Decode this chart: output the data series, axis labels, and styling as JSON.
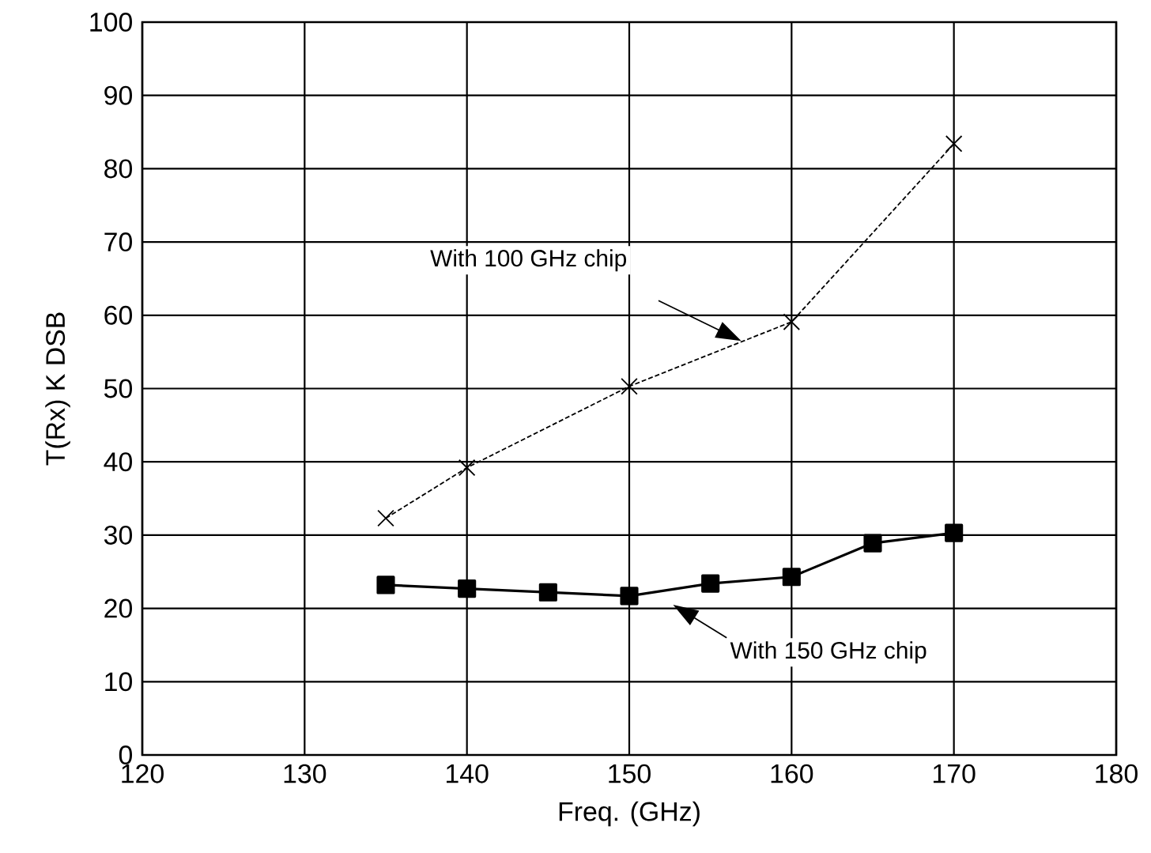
{
  "chart_data": {
    "type": "line",
    "xlabel": "Freq. (GHz)",
    "ylabel": "T(Rx)  K   DSB",
    "series": [
      {
        "x": [
          135,
          140,
          150,
          160,
          170
        ],
        "values": [
          32.3,
          39.2,
          50.3,
          59.1,
          83.4
        ],
        "color": "#000000",
        "marker": "cross",
        "line_style": "dashed"
      },
      {
        "x": [
          135,
          140,
          145,
          150,
          155,
          160,
          165,
          170
        ],
        "values": [
          23.2,
          22.7,
          22.2,
          21.7,
          23.4,
          24.3,
          28.9,
          30.3
        ],
        "color": "#000000",
        "marker": "square",
        "line_style": "solid"
      }
    ],
    "xlim": [
      120,
      180
    ],
    "xticks": [
      120,
      130,
      140,
      150,
      160,
      170,
      180
    ],
    "ylim": [
      0,
      100
    ],
    "yticks": [
      0,
      10,
      20,
      30,
      40,
      50,
      60,
      70,
      80,
      90,
      100
    ],
    "grid": true,
    "annotations": [
      "With  100 GHz  chip",
      "With  150 GHz chip"
    ]
  }
}
